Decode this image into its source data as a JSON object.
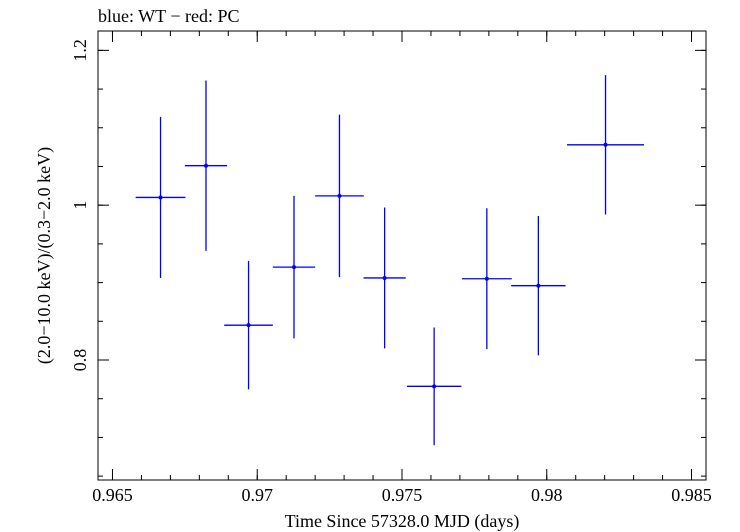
{
  "chart_data": {
    "type": "scatter",
    "title": "blue: WT − red: PC",
    "xlabel": "Time Since 57328.0 MJD (days)",
    "ylabel": "(2.0−10.0 keV)/(0.3−2.0 keV)",
    "xlim": [
      0.9645,
      0.9855
    ],
    "ylim": [
      0.645,
      1.225
    ],
    "xticks": [
      {
        "value": 0.965,
        "label": "0.965"
      },
      {
        "value": 0.97,
        "label": "0.97"
      },
      {
        "value": 0.975,
        "label": "0.975"
      },
      {
        "value": 0.98,
        "label": "0.98"
      },
      {
        "value": 0.985,
        "label": "0.985"
      }
    ],
    "yticks": [
      {
        "value": 0.8,
        "label": "0.8"
      },
      {
        "value": 1.0,
        "label": "1"
      },
      {
        "value": 1.2,
        "label": "1.2"
      }
    ],
    "x_minor_step": 0.001,
    "y_minor_step": 0.05,
    "series": [
      {
        "name": "WT",
        "color": "#0000ff",
        "points": [
          {
            "x": 0.96666,
            "xerr": 0.00086,
            "y": 1.01,
            "yerr": 0.104
          },
          {
            "x": 0.96823,
            "xerr": 0.00073,
            "y": 1.051,
            "yerr": 0.11
          },
          {
            "x": 0.9697,
            "xerr": 0.00084,
            "y": 0.845,
            "yerr": 0.083
          },
          {
            "x": 0.97127,
            "xerr": 0.00073,
            "y": 0.92,
            "yerr": 0.092
          },
          {
            "x": 0.97284,
            "xerr": 0.00084,
            "y": 1.012,
            "yerr": 0.105
          },
          {
            "x": 0.9744,
            "xerr": 0.00073,
            "y": 0.906,
            "yerr": 0.091
          },
          {
            "x": 0.97611,
            "xerr": 0.00094,
            "y": 0.766,
            "yerr": 0.076
          },
          {
            "x": 0.97793,
            "xerr": 0.00086,
            "y": 0.905,
            "yerr": 0.091
          },
          {
            "x": 0.97971,
            "xerr": 0.00094,
            "y": 0.896,
            "yerr": 0.09
          },
          {
            "x": 0.98203,
            "xerr": 0.00133,
            "y": 1.078,
            "yerr": 0.09
          }
        ]
      }
    ]
  }
}
